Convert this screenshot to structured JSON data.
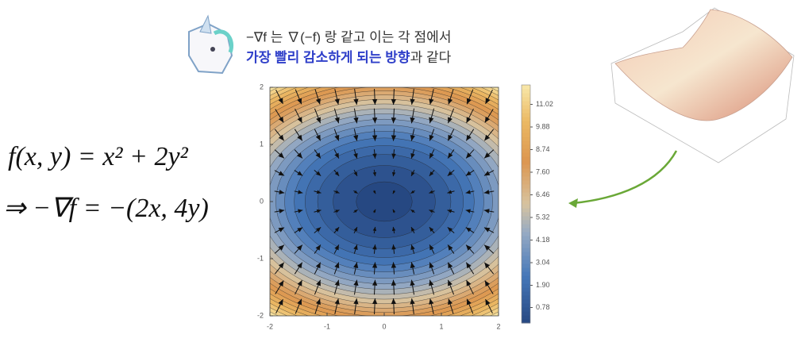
{
  "caption": {
    "line1": "−∇f 는 ∇(−f) 랑 같고 이는 각 점에서",
    "line2_highlight": "가장 빨리 감소하게 되는 방향",
    "line2_rest": "과 같다"
  },
  "formulas": [
    "f(x, y) = x² + 2y²",
    "⇒ −∇f = −(2x, 4y)"
  ],
  "chart_data": {
    "type": "contour",
    "xlim": [
      -2,
      2
    ],
    "ylim": [
      -2,
      2
    ],
    "xticks": [
      -2,
      -1,
      0,
      1,
      2
    ],
    "yticks": [
      -2,
      -1,
      0,
      1,
      2
    ],
    "zlim": [
      0,
      12
    ],
    "colorbar_ticks": [
      0.78,
      {
        "value": 1.9,
        "label": "1.90"
      },
      3.04,
      4.18,
      5.32,
      6.46,
      {
        "value": 7.6,
        "label": "7.60"
      },
      8.74,
      9.88,
      11.02
    ]
  }
}
